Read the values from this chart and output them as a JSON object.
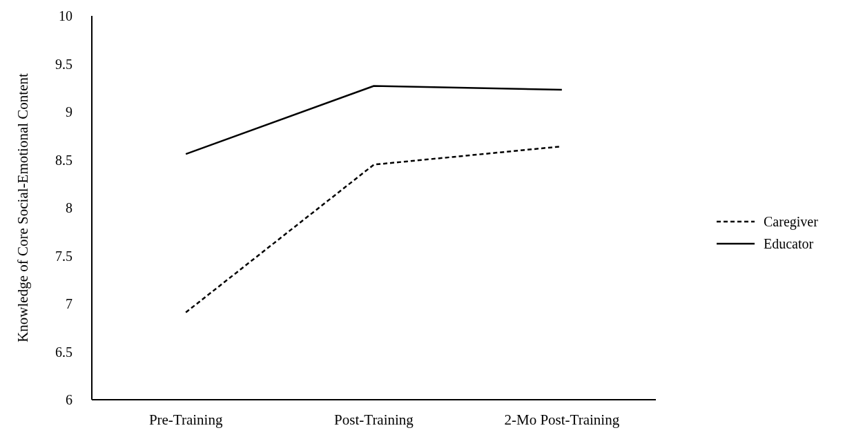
{
  "chart_data": {
    "type": "line",
    "ylabel": "Knowledge of Core Social-Emotional Content",
    "categories": [
      "Pre-Training",
      "Post-Training",
      "2-Mo Post-Training"
    ],
    "series": [
      {
        "name": "Caregiver",
        "color": "#000000",
        "line_style": "dashed",
        "values": [
          6.91,
          8.45,
          8.64
        ]
      },
      {
        "name": "Educator",
        "color": "#000000",
        "line_style": "solid",
        "values": [
          8.56,
          9.27,
          9.23
        ]
      }
    ],
    "ylim": [
      6,
      10
    ],
    "yticks": [
      6,
      6.5,
      7,
      7.5,
      8,
      8.5,
      9,
      9.5,
      10
    ],
    "grid": false,
    "legend": "right",
    "marker": "none"
  }
}
